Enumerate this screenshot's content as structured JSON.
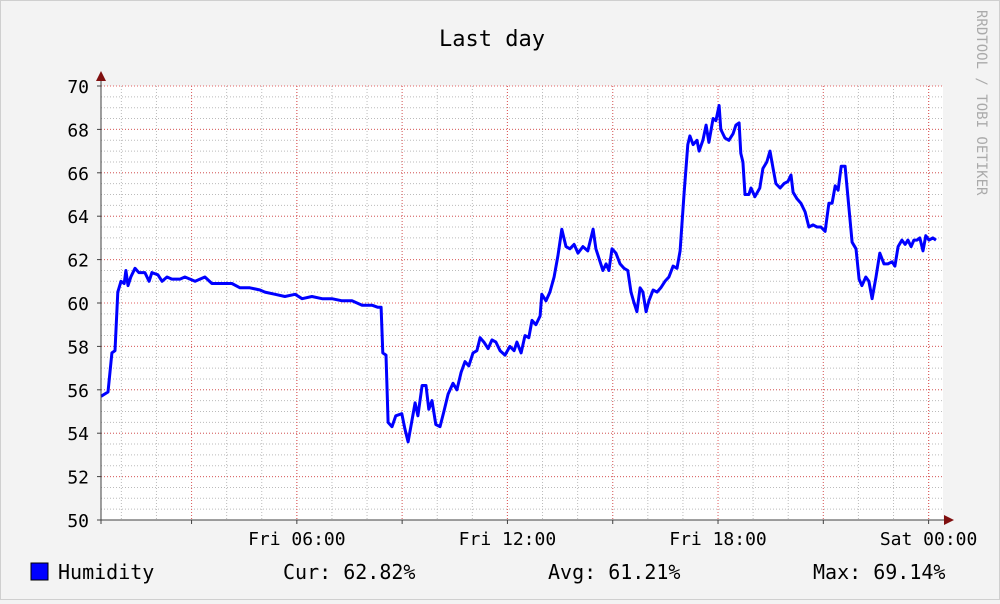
{
  "chart_data": {
    "type": "line",
    "title": "Last day",
    "watermark": "RRDTOOL / TOBI OETIKER",
    "x": [
      0.42,
      0.62,
      0.73,
      0.82,
      0.9,
      0.99,
      1.08,
      1.13,
      1.19,
      1.27,
      1.39,
      1.5,
      1.67,
      1.79,
      1.87,
      2.04,
      2.16,
      2.3,
      2.44,
      2.67,
      2.81,
      3.1,
      3.38,
      3.58,
      3.87,
      4.15,
      4.38,
      4.66,
      4.95,
      5.09,
      5.38,
      5.66,
      5.95,
      6.15,
      6.43,
      6.72,
      7.0,
      7.29,
      7.57,
      7.86,
      8.14,
      8.31,
      8.4,
      8.45,
      8.54,
      8.6,
      8.71,
      8.82,
      8.99,
      9.08,
      9.17,
      9.28,
      9.37,
      9.45,
      9.57,
      9.68,
      9.76,
      9.85,
      9.96,
      10.08,
      10.19,
      10.31,
      10.45,
      10.56,
      10.68,
      10.79,
      10.9,
      11.02,
      11.13,
      11.22,
      11.33,
      11.45,
      11.56,
      11.67,
      11.79,
      11.93,
      12.07,
      12.19,
      12.27,
      12.39,
      12.5,
      12.61,
      12.7,
      12.81,
      12.93,
      12.98,
      13.1,
      13.21,
      13.33,
      13.44,
      13.55,
      13.67,
      13.78,
      13.9,
      14.01,
      14.15,
      14.29,
      14.44,
      14.52,
      14.64,
      14.72,
      14.81,
      14.89,
      14.98,
      15.09,
      15.21,
      15.32,
      15.43,
      15.52,
      15.61,
      15.69,
      15.78,
      15.86,
      15.95,
      16.03,
      16.15,
      16.26,
      16.37,
      16.49,
      16.6,
      16.72,
      16.83,
      16.92,
      17.03,
      17.14,
      17.2,
      17.29,
      17.4,
      17.46,
      17.57,
      17.66,
      17.74,
      17.86,
      17.94,
      18.03,
      18.08,
      18.2,
      18.31,
      18.43,
      18.51,
      18.6,
      18.65,
      18.71,
      18.77,
      18.88,
      18.94,
      19.05,
      19.19,
      19.28,
      19.39,
      19.48,
      19.57,
      19.65,
      19.77,
      19.88,
      19.99,
      20.08,
      20.14,
      20.25,
      20.36,
      20.48,
      20.59,
      20.71,
      20.82,
      20.93,
      21.05,
      21.16,
      21.25,
      21.34,
      21.42,
      21.51,
      21.62,
      21.74,
      21.82,
      21.93,
      22.02,
      22.1,
      22.21,
      22.3,
      22.39,
      22.5,
      22.61,
      22.73,
      22.84,
      22.96,
      23.04,
      23.13,
      23.24,
      23.33,
      23.41,
      23.5,
      23.58,
      23.67,
      23.75,
      23.84,
      23.92,
      24.01,
      24.12,
      24.21
    ],
    "series": [
      {
        "name": "Humidity",
        "color": "#0000ff",
        "values": [
          55.7,
          55.9,
          57.7,
          57.8,
          60.5,
          61.0,
          60.9,
          61.5,
          60.8,
          61.2,
          61.6,
          61.4,
          61.4,
          61.0,
          61.4,
          61.3,
          61.0,
          61.2,
          61.1,
          61.1,
          61.2,
          61.0,
          61.2,
          60.9,
          60.9,
          60.9,
          60.7,
          60.7,
          60.6,
          60.5,
          60.4,
          60.3,
          60.4,
          60.2,
          60.3,
          60.2,
          60.2,
          60.1,
          60.1,
          59.9,
          59.9,
          59.8,
          59.8,
          57.7,
          57.6,
          54.5,
          54.3,
          54.8,
          54.9,
          54.2,
          53.6,
          54.6,
          55.4,
          54.8,
          56.2,
          56.2,
          55.1,
          55.5,
          54.4,
          54.3,
          55.0,
          55.8,
          56.3,
          56.0,
          56.8,
          57.3,
          57.1,
          57.7,
          57.8,
          58.4,
          58.2,
          57.9,
          58.3,
          58.2,
          57.8,
          57.6,
          58.0,
          57.8,
          58.2,
          57.7,
          58.5,
          58.4,
          59.2,
          59.0,
          59.4,
          60.4,
          60.1,
          60.5,
          61.2,
          62.2,
          63.4,
          62.6,
          62.5,
          62.7,
          62.3,
          62.6,
          62.4,
          63.4,
          62.5,
          61.9,
          61.5,
          61.8,
          61.5,
          62.5,
          62.3,
          61.8,
          61.6,
          61.5,
          60.5,
          60.0,
          59.6,
          60.7,
          60.5,
          59.6,
          60.1,
          60.6,
          60.5,
          60.7,
          61.0,
          61.2,
          61.7,
          61.6,
          62.4,
          65.0,
          67.3,
          67.7,
          67.3,
          67.5,
          67.0,
          67.5,
          68.2,
          67.4,
          68.5,
          68.4,
          69.1,
          68.0,
          67.6,
          67.5,
          67.8,
          68.2,
          68.3,
          66.9,
          66.5,
          65.0,
          65.0,
          65.3,
          64.9,
          65.3,
          66.2,
          66.5,
          67.0,
          66.2,
          65.5,
          65.3,
          65.5,
          65.6,
          65.9,
          65.1,
          64.8,
          64.6,
          64.2,
          63.5,
          63.6,
          63.5,
          63.5,
          63.3,
          64.6,
          64.6,
          65.4,
          65.2,
          66.3,
          66.3,
          64.2,
          62.8,
          62.5,
          61.1,
          60.8,
          61.2,
          61.0,
          60.2,
          61.2,
          62.3,
          61.8,
          61.8,
          61.9,
          61.7,
          62.6,
          62.9,
          62.7,
          62.9,
          62.6,
          62.9,
          62.9,
          63.0,
          62.4,
          63.1,
          62.9,
          63.0,
          62.9
        ]
      }
    ],
    "xlim": [
      0.42,
      24.41
    ],
    "xticks": [
      {
        "value": 6,
        "label": "Fri 06:00"
      },
      {
        "value": 12,
        "label": "Fri 12:00"
      },
      {
        "value": 18,
        "label": "Fri 18:00"
      },
      {
        "value": 24,
        "label": "Sat 00:00"
      }
    ],
    "ylim": [
      50,
      70
    ],
    "yticks": [
      50,
      52,
      54,
      56,
      58,
      60,
      62,
      64,
      66,
      68,
      70
    ],
    "grid": {
      "x_major": 3,
      "x_minor": 1,
      "y_minor": 0.5
    },
    "stats": [
      "Cur: 62.82%",
      "Avg: 61.21%",
      "Max: 69.14%"
    ]
  }
}
